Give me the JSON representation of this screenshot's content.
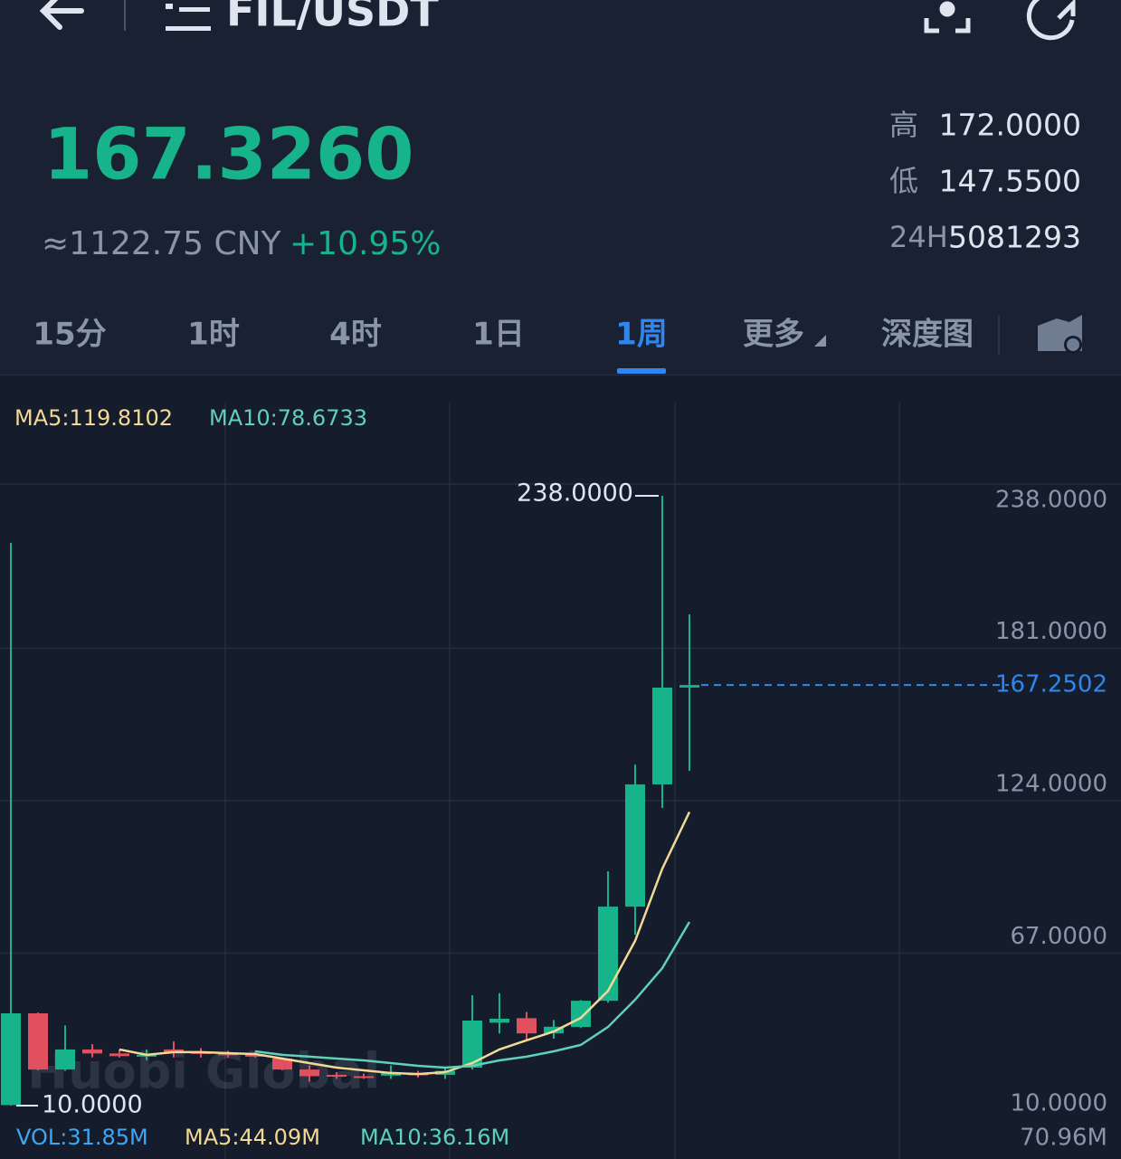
{
  "header": {
    "pair": "FIL/USDT"
  },
  "ticker": {
    "price": "167.3260",
    "cny": "≈1122.75 CNY",
    "change": "+10.95%",
    "stats": [
      {
        "label": "高",
        "value": "172.0000"
      },
      {
        "label": "低",
        "value": "147.5500"
      },
      {
        "label": "24H",
        "value": "5081293"
      }
    ]
  },
  "tabs": {
    "items": [
      "15分",
      "1时",
      "4时",
      "1日",
      "1周",
      "更多",
      "深度图"
    ],
    "active": 4
  },
  "chart_data": {
    "type": "candlestick",
    "up_color": "#17b38b",
    "down_color": "#e0505f",
    "ylim": [
      10,
      238
    ],
    "yticks": [
      {
        "value": 238,
        "label": "238.0000"
      },
      {
        "value": 181,
        "label": "181.0000"
      },
      {
        "value": 124,
        "label": "124.0000"
      },
      {
        "value": 67,
        "label": "67.0000"
      },
      {
        "value": 10,
        "label": "10.0000"
      }
    ],
    "grid": true,
    "open": [
      10.2,
      44.5,
      23.5,
      31,
      29.5,
      28.5,
      31,
      30,
      29.5,
      29,
      27.6,
      23.5,
      21.5,
      21,
      21.2,
      22,
      21.5,
      24.2,
      41,
      42.7,
      37,
      39.4,
      49.2,
      84.4,
      130.1,
      166.3
    ],
    "high": [
      220.4,
      44.8,
      40,
      33,
      31,
      31,
      34,
      31.5,
      30.5,
      30,
      28,
      25,
      22.5,
      22,
      25,
      23,
      24,
      51.3,
      52,
      45,
      42,
      49.5,
      97.6,
      137.5,
      238,
      193.7
    ],
    "low": [
      10,
      23.2,
      23,
      28,
      28,
      27,
      28,
      28,
      28,
      28,
      23.2,
      19,
      20,
      20,
      20,
      20.5,
      20,
      23.5,
      37,
      34,
      35,
      39,
      48.5,
      73.9,
      121.3,
      135.2
    ],
    "close": [
      44.5,
      23.5,
      31,
      29.5,
      28.5,
      29,
      30,
      29.5,
      29,
      28.8,
      23.5,
      21,
      21,
      20.8,
      22.5,
      21.5,
      23,
      41.8,
      42.5,
      37,
      39.5,
      49.2,
      84.4,
      130.1,
      166.3,
      167.2502
    ],
    "series": [
      {
        "name": "MA5:119.8102",
        "color": "#f3d995",
        "values": [
          null,
          null,
          null,
          null,
          31.0,
          29.0,
          30.0,
          30.0,
          29.6,
          29.3,
          27.6,
          25.9,
          24.2,
          23.2,
          22.2,
          21.8,
          22.5,
          25.9,
          31.0,
          34.4,
          37.7,
          42.8,
          52.9,
          71.6,
          98.6,
          119.81
        ]
      },
      {
        "name": "MA10:78.6733",
        "color": "#5fd1b9",
        "values": [
          null,
          null,
          null,
          null,
          null,
          null,
          null,
          null,
          null,
          30.3,
          29.0,
          28.3,
          27.6,
          26.9,
          25.9,
          24.9,
          24.2,
          24.9,
          26.9,
          28.3,
          30.3,
          32.7,
          39.4,
          49.6,
          61.4,
          78.67
        ]
      }
    ],
    "max_marker": {
      "value": 238,
      "label": "238.0000"
    },
    "min_marker": {
      "value": 10,
      "label": "10.0000"
    },
    "current_price": 167.2502,
    "watermark": "Huobi Global",
    "volume_legend": [
      {
        "text": "VOL:31.85M",
        "color": "#3ea6f5"
      },
      {
        "text": "MA5:44.09M",
        "color": "#f3d995"
      },
      {
        "text": "MA10:36.16M",
        "color": "#5fd1b9"
      }
    ],
    "volume_axis_label": "70.96M"
  }
}
